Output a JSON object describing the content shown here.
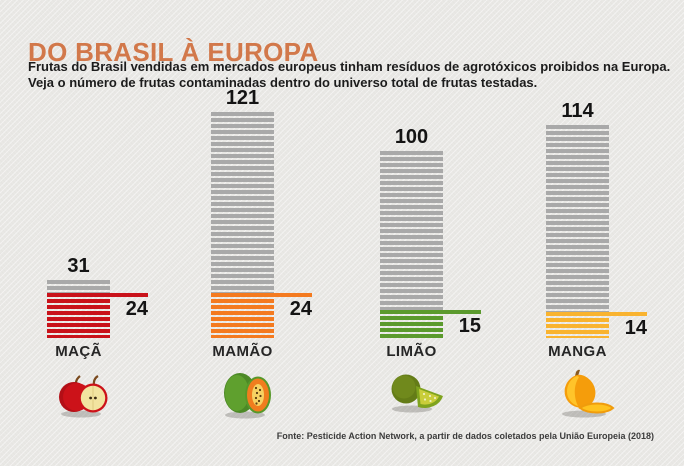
{
  "title": "DO BRASIL À EUROPA",
  "subtitle": {
    "line1": "Frutas do Brasil vendidas em mercados europeus tinham resíduos de agrotóxicos proibidos na Europa.",
    "line2": "Veja o número de frutas contaminadas dentro do universo total de frutas testadas."
  },
  "footer": {
    "source": "Fonte: Pesticide Action Network, a partir de dados coletados pela União Europeia (2018)"
  },
  "colors": {
    "background": "#e9e8e5",
    "title_accent": "#d2784a",
    "bar_total_gray": "#a9a9a9",
    "label_text": "#141414"
  },
  "chart_data": {
    "type": "bar",
    "title": "DO BRASIL À EUROPA",
    "categories": [
      "MAÇÃ",
      "MAMÃO",
      "LIMÃO",
      "MANGA"
    ],
    "series": [
      {
        "name": "frutas testadas (total)",
        "values": [
          31,
          121,
          100,
          114
        ],
        "color": "#a9a9a9"
      },
      {
        "name": "frutas contaminadas",
        "values": [
          24,
          24,
          15,
          14
        ],
        "colors": [
          "#c9121a",
          "#f47a1f",
          "#5b9a2d",
          "#f9b32f"
        ]
      }
    ],
    "ylim": [
      0,
      121
    ],
    "grid": false,
    "legend": "none",
    "fruits": [
      {
        "name": "MAÇÃ",
        "total": 31,
        "contaminated": 24,
        "color": "#c9121a",
        "icon": "apple-icon"
      },
      {
        "name": "MAMÃO",
        "total": 121,
        "contaminated": 24,
        "color": "#f47a1f",
        "icon": "papaya-icon"
      },
      {
        "name": "LIMÃO",
        "total": 100,
        "contaminated": 15,
        "color": "#5b9a2d",
        "icon": "lime-icon"
      },
      {
        "name": "MANGA",
        "total": 114,
        "contaminated": 14,
        "color": "#f9b32f",
        "icon": "mango-icon"
      }
    ]
  }
}
